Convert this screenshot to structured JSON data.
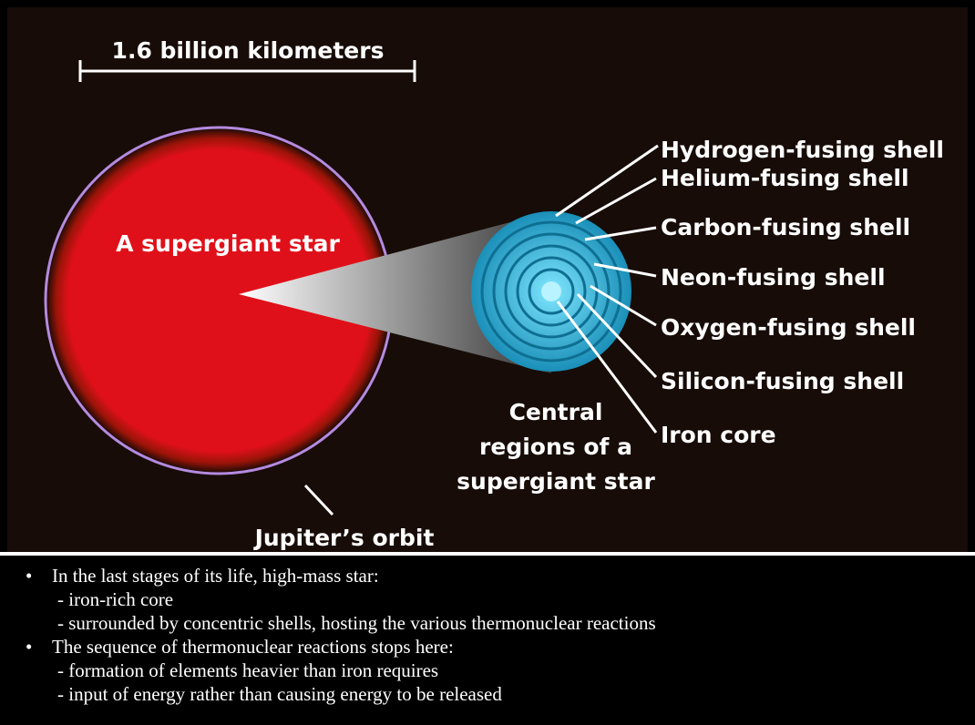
{
  "diagram": {
    "scale_label": "1.6 billion kilometers",
    "star_label": "A supergiant star",
    "orbit_label": "Jupiter’s orbit",
    "shells": [
      "Hydrogen-fusing shell",
      "Helium-fusing shell",
      "Carbon-fusing shell",
      "Neon-fusing shell",
      "Oxygen-fusing shell",
      "Silicon-fusing shell",
      "Iron core"
    ],
    "central_label": [
      "Central",
      "regions of a",
      "supergiant star"
    ]
  },
  "bullets": [
    {
      "text": "In the last stages of its life, high-mass star:",
      "items": [
        "- iron-rich core",
        "- surrounded by concentric shells, hosting the various thermonuclear reactions"
      ]
    },
    {
      "text": "The sequence of thermonuclear reactions stops here:",
      "items": [
        "- formation of elements heavier than iron requires",
        "- input of energy rather than causing energy to be released"
      ]
    }
  ]
}
